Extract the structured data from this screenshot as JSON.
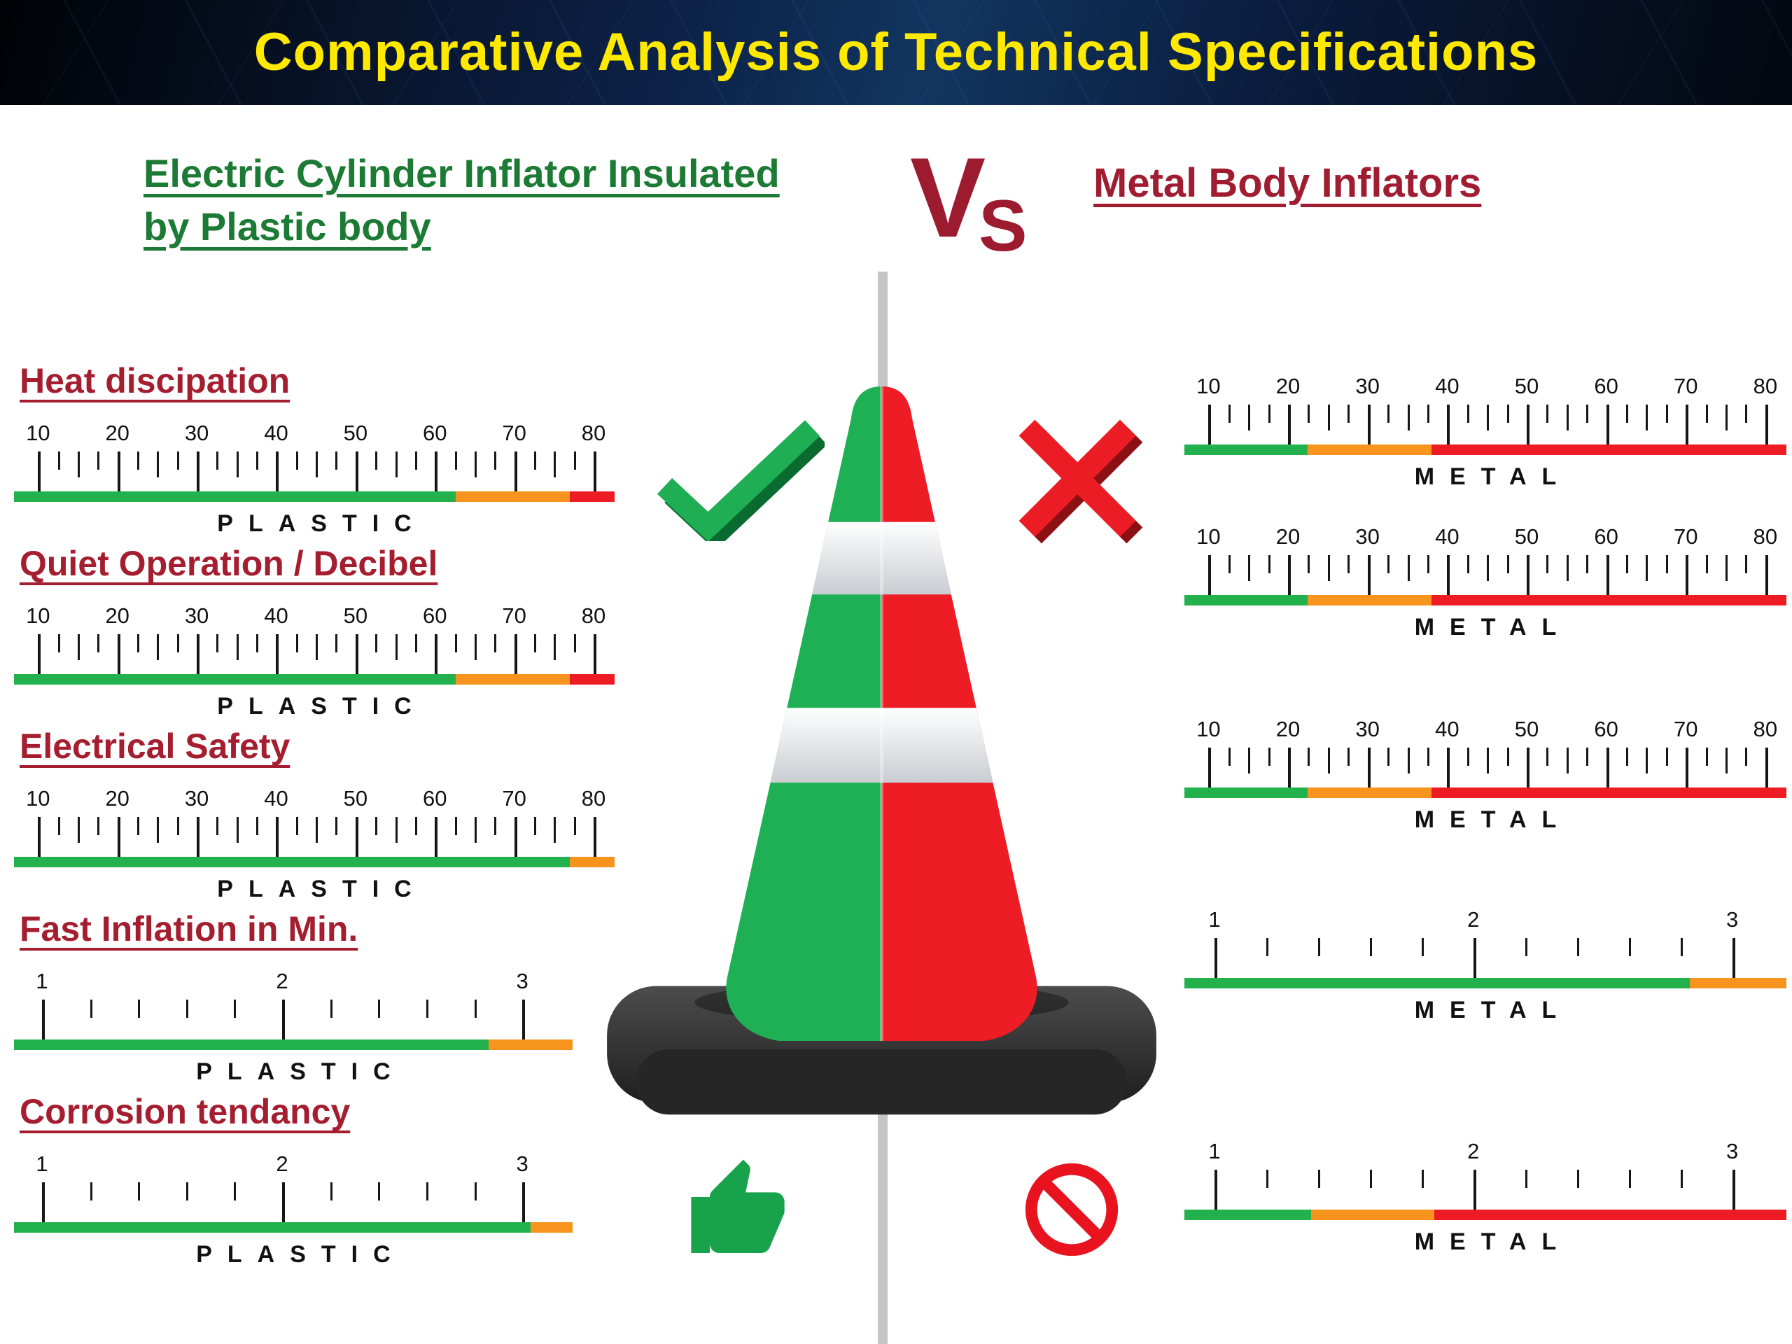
{
  "header": {
    "title": "Comparative Analysis of Technical Specifications"
  },
  "left": {
    "heading_lines": [
      "Electric Cylinder Inflator Insulated",
      "by Plastic body"
    ]
  },
  "vs": {
    "v": "V",
    "s": "S"
  },
  "right": {
    "heading": "Metal Body Inflators"
  },
  "colors": {
    "green": "#22b14c",
    "orange": "#f7941d",
    "red": "#ed1c24",
    "heading_green": "#1b7a33",
    "heading_red": "#a01d31",
    "title_yellow": "#ffe900"
  },
  "chart_data": {
    "type": "bar",
    "title": "Comparative Analysis of Technical Specifications",
    "left_product": "Electric Cylinder Inflator Insulated by Plastic body",
    "right_product": "Metal Body Inflators",
    "legend_position": "none",
    "grid": false,
    "metrics": [
      "Heat discipation",
      "Quiet Operation / Decibel",
      "Electrical Safety",
      "Fast Inflation in Min.",
      "Corrosion tendancy"
    ],
    "plastic_gauges": [
      {
        "label": "PLASTIC",
        "scale_min": 10,
        "scale_max": 80,
        "tick_labels": [
          "10",
          "20",
          "30",
          "40",
          "50",
          "60",
          "70",
          "80"
        ],
        "segments": [
          {
            "color": "green",
            "to_pct": 73.5,
            "approx_value": 62
          },
          {
            "color": "orange",
            "to_pct": 92.5,
            "approx_value": 77
          },
          {
            "color": "red",
            "to_pct": 100,
            "approx_value": 80
          }
        ]
      },
      {
        "label": "PLASTIC",
        "scale_min": 10,
        "scale_max": 80,
        "tick_labels": [
          "10",
          "20",
          "30",
          "40",
          "50",
          "60",
          "70",
          "80"
        ],
        "segments": [
          {
            "color": "green",
            "to_pct": 73.5,
            "approx_value": 62
          },
          {
            "color": "orange",
            "to_pct": 92.5,
            "approx_value": 77
          },
          {
            "color": "red",
            "to_pct": 100,
            "approx_value": 80
          }
        ]
      },
      {
        "label": "PLASTIC",
        "scale_min": 10,
        "scale_max": 80,
        "tick_labels": [
          "10",
          "20",
          "30",
          "40",
          "50",
          "60",
          "70",
          "80"
        ],
        "segments": [
          {
            "color": "green",
            "to_pct": 92.5,
            "approx_value": 77
          },
          {
            "color": "orange",
            "to_pct": 100,
            "approx_value": 80
          }
        ]
      },
      {
        "label": "PLASTIC",
        "scale_min": 1,
        "scale_max": 3,
        "tick_labels": [
          "1",
          "2",
          "3"
        ],
        "bar_width_pct": 93,
        "segments": [
          {
            "color": "green",
            "to_pct": 85,
            "approx_value": 2.8
          },
          {
            "color": "orange",
            "to_pct": 100,
            "approx_value": 3.2
          }
        ]
      },
      {
        "label": "PLASTIC",
        "scale_min": 1,
        "scale_max": 3,
        "tick_labels": [
          "1",
          "2",
          "3"
        ],
        "bar_width_pct": 93,
        "segments": [
          {
            "color": "green",
            "to_pct": 92.5,
            "approx_value": 3
          },
          {
            "color": "orange",
            "to_pct": 100,
            "approx_value": 3.2
          }
        ]
      }
    ],
    "metal_gauges": [
      {
        "label": "METAL",
        "scale_min": 10,
        "scale_max": 80,
        "tick_labels": [
          "10",
          "20",
          "30",
          "40",
          "50",
          "60",
          "70",
          "80"
        ],
        "segments": [
          {
            "color": "green",
            "to_pct": 20.5,
            "approx_value": 24
          },
          {
            "color": "orange",
            "to_pct": 41,
            "approx_value": 38
          },
          {
            "color": "red",
            "to_pct": 100,
            "approx_value": 80
          }
        ]
      },
      {
        "label": "METAL",
        "scale_min": 10,
        "scale_max": 80,
        "tick_labels": [
          "10",
          "20",
          "30",
          "40",
          "50",
          "60",
          "70",
          "80"
        ],
        "segments": [
          {
            "color": "green",
            "to_pct": 20.5,
            "approx_value": 24
          },
          {
            "color": "orange",
            "to_pct": 41,
            "approx_value": 38
          },
          {
            "color": "red",
            "to_pct": 100,
            "approx_value": 80
          }
        ]
      },
      {
        "label": "METAL",
        "scale_min": 10,
        "scale_max": 80,
        "tick_labels": [
          "10",
          "20",
          "30",
          "40",
          "50",
          "60",
          "70",
          "80"
        ],
        "segments": [
          {
            "color": "green",
            "to_pct": 20.5,
            "approx_value": 24
          },
          {
            "color": "orange",
            "to_pct": 41,
            "approx_value": 38
          },
          {
            "color": "red",
            "to_pct": 100,
            "approx_value": 80
          }
        ]
      },
      {
        "label": "METAL",
        "scale_min": 1,
        "scale_max": 3,
        "tick_labels": [
          "1",
          "2",
          "3"
        ],
        "segments": [
          {
            "color": "green",
            "to_pct": 84,
            "approx_value": 2.8
          },
          {
            "color": "orange",
            "to_pct": 100,
            "approx_value": 3.2
          }
        ]
      },
      {
        "label": "METAL",
        "scale_min": 1,
        "scale_max": 3,
        "tick_labels": [
          "1",
          "2",
          "3"
        ],
        "segments": [
          {
            "color": "green",
            "to_pct": 21,
            "approx_value": 1.4
          },
          {
            "color": "orange",
            "to_pct": 41.5,
            "approx_value": 1.9
          },
          {
            "color": "red",
            "to_pct": 100,
            "approx_value": 3.2
          }
        ]
      }
    ]
  }
}
